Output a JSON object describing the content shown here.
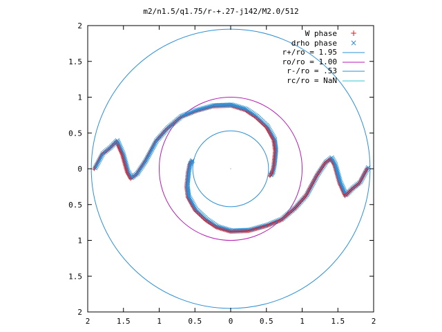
{
  "chart_data": {
    "type": "scatter",
    "title": "m2/n1.5/q1.75/r-+.27-j142/M2.0/512",
    "xlabel": "",
    "ylabel": "",
    "xlim": [
      -2,
      2
    ],
    "ylim": [
      -2,
      2
    ],
    "x_tick_labels": [
      "2",
      "1.5",
      "1",
      "0.5",
      "0",
      "0.5",
      "1",
      "1.5",
      "2"
    ],
    "y_tick_labels": [
      "2",
      "1.5",
      "1",
      "0.5",
      "0",
      "0.5",
      "1",
      "1.5",
      "2"
    ],
    "x_ticks": [
      -2,
      -1.5,
      -1,
      -0.5,
      0,
      0.5,
      1,
      1.5,
      2
    ],
    "y_ticks": [
      2,
      1.5,
      1,
      0.5,
      0,
      -0.5,
      -1,
      -1.5,
      -2
    ],
    "grid": false,
    "legend_position": "top-right",
    "circles": [
      {
        "name": "r+/ro = 1.95",
        "radius": 1.95,
        "color": "#2a8fd6"
      },
      {
        "name": "ro/ro = 1.00",
        "radius": 1.0,
        "color": "#b51ab5"
      },
      {
        "name": "r-/ro = .53",
        "radius": 0.53,
        "color": "#2a8fd6"
      },
      {
        "name": "rc/ro = NaN",
        "radius": null,
        "color": "#33c6cf"
      }
    ],
    "series": [
      {
        "name": "W phase",
        "marker": "+",
        "color": "#e8141b"
      },
      {
        "name": "drho phase",
        "marker": "x",
        "color": "#2a8fd6"
      }
    ],
    "arms": [
      {
        "points": [
          [
            -0.55,
            0.1
          ],
          [
            -0.58,
            0.05
          ],
          [
            -0.6,
            -0.05
          ],
          [
            -0.62,
            -0.25
          ],
          [
            -0.6,
            -0.4
          ],
          [
            -0.5,
            -0.58
          ],
          [
            -0.35,
            -0.72
          ],
          [
            -0.2,
            -0.82
          ],
          [
            0,
            -0.88
          ],
          [
            0.25,
            -0.87
          ],
          [
            0.5,
            -0.8
          ],
          [
            0.7,
            -0.72
          ],
          [
            0.9,
            -0.55
          ],
          [
            1.05,
            -0.38
          ],
          [
            1.2,
            -0.1
          ],
          [
            1.32,
            0.08
          ],
          [
            1.4,
            0.14
          ],
          [
            1.45,
            0.05
          ],
          [
            1.52,
            -0.2
          ],
          [
            1.6,
            -0.38
          ],
          [
            1.7,
            -0.28
          ],
          [
            1.8,
            -0.2
          ],
          [
            1.88,
            -0.05
          ],
          [
            1.92,
            0.02
          ]
        ]
      },
      {
        "points": [
          [
            0.55,
            -0.1
          ],
          [
            0.58,
            -0.05
          ],
          [
            0.6,
            0.05
          ],
          [
            0.62,
            0.25
          ],
          [
            0.6,
            0.4
          ],
          [
            0.5,
            0.58
          ],
          [
            0.35,
            0.72
          ],
          [
            0.2,
            0.82
          ],
          [
            0,
            0.88
          ],
          [
            -0.25,
            0.87
          ],
          [
            -0.5,
            0.8
          ],
          [
            -0.7,
            0.72
          ],
          [
            -0.9,
            0.55
          ],
          [
            -1.05,
            0.38
          ],
          [
            -1.2,
            0.1
          ],
          [
            -1.32,
            -0.08
          ],
          [
            -1.4,
            -0.14
          ],
          [
            -1.45,
            -0.05
          ],
          [
            -1.52,
            0.2
          ],
          [
            -1.6,
            0.38
          ],
          [
            -1.7,
            0.28
          ],
          [
            -1.8,
            0.2
          ],
          [
            -1.88,
            0.05
          ],
          [
            -1.92,
            -0.02
          ]
        ]
      }
    ]
  }
}
